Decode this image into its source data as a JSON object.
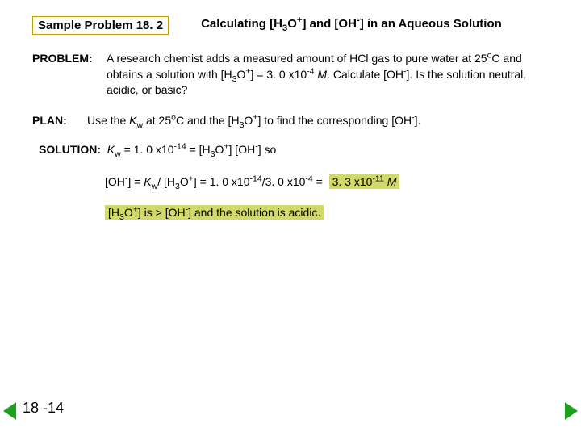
{
  "header": {
    "sample_label": "Sample Problem 18. 2",
    "title_html": "Calculating [H<sub>3</sub>O<sup>+</sup>] and [OH<sup>-</sup>] in an Aqueous Solution"
  },
  "problem": {
    "label": "PROBLEM:",
    "text_html": "A research chemist adds a measured amount of HCl gas to pure water at 25<sup>o</sup>C and obtains a solution with [H<sub>3</sub>O<sup>+</sup>] = 3. 0 x10<sup>-4</sup> <span class=\"ital\">M</span>. Calculate [OH<sup>-</sup>].  Is the solution neutral, acidic, or basic?"
  },
  "plan": {
    "label": "PLAN:",
    "text_html": "Use the <span class=\"ital\">K</span><sub>w</sub> at 25<sup>o</sup>C and the [H<sub>3</sub>O<sup>+</sup>] to find the corresponding [OH<sup>-</sup>]."
  },
  "solution": {
    "label": "SOLUTION:",
    "line1_html": "<span class=\"ital\">K</span><sub>w</sub> = 1. 0 x10<sup>-14</sup> = [H<sub>3</sub>O<sup>+</sup>] [OH<sup>-</sup>] so",
    "line2_html": "[OH<sup>-</sup>] = <span class=\"ital\">K</span><sub>w</sub>/ [H<sub>3</sub>O<sup>+</sup>] = 1. 0 x10<sup>-14</sup>/3. 0 x10<sup>-4</sup> = &nbsp;",
    "result_html": "<span class=\"num\">3. 3 x10<sup>-11</sup></span> M",
    "line3_html": "[H<sub>3</sub>O<sup>+</sup>] is &gt; [OH<sup>-</sup>] and the solution is acidic."
  },
  "page": "18 -14",
  "colors": {
    "highlight_bg": "#d0d96a",
    "border": "#c0a000",
    "nav_arrow": "#1ea01e",
    "background": "#ffffff",
    "text": "#000000"
  }
}
